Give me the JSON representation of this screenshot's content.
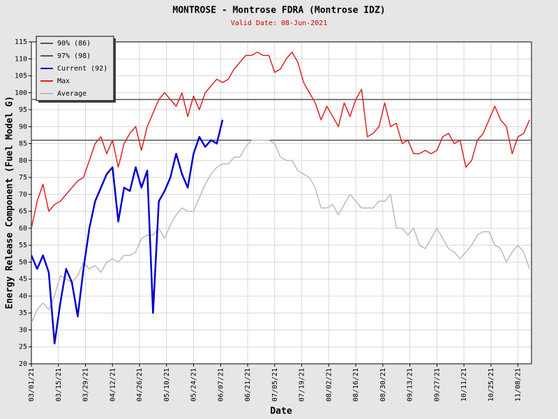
{
  "chart_data": {
    "type": "line",
    "title": "MONTROSE - Montrose FDRA (Montrose IDZ)",
    "subtitle": "Valid Date: 08-Jun-2021",
    "x_label": "Date",
    "y_label": "Energy Release Component (Fuel Model G)",
    "x": [
      "03/01/21",
      "03/04/21",
      "03/07/21",
      "03/10/21",
      "03/13/21",
      "03/16/21",
      "03/19/21",
      "03/22/21",
      "03/25/21",
      "03/28/21",
      "03/31/21",
      "04/03/21",
      "04/06/21",
      "04/09/21",
      "04/12/21",
      "04/15/21",
      "04/18/21",
      "04/21/21",
      "04/24/21",
      "04/27/21",
      "04/30/21",
      "05/03/21",
      "05/06/21",
      "05/09/21",
      "05/12/21",
      "05/15/21",
      "05/18/21",
      "05/21/21",
      "05/24/21",
      "05/27/21",
      "05/30/21",
      "06/02/21",
      "06/05/21",
      "06/08/21",
      "06/11/21",
      "06/14/21",
      "06/17/21",
      "06/20/21",
      "06/23/21",
      "06/26/21",
      "06/29/21",
      "07/02/21",
      "07/05/21",
      "07/08/21",
      "07/11/21",
      "07/14/21",
      "07/17/21",
      "07/20/21",
      "07/23/21",
      "07/26/21",
      "07/29/21",
      "08/01/21",
      "08/04/21",
      "08/07/21",
      "08/10/21",
      "08/13/21",
      "08/16/21",
      "08/19/21",
      "08/22/21",
      "08/25/21",
      "08/28/21",
      "08/31/21",
      "09/03/21",
      "09/06/21",
      "09/09/21",
      "09/12/21",
      "09/15/21",
      "09/18/21",
      "09/21/21",
      "09/24/21",
      "09/27/21",
      "09/30/21",
      "10/03/21",
      "10/06/21",
      "10/09/21",
      "10/12/21",
      "10/15/21",
      "10/18/21",
      "10/21/21",
      "10/24/21",
      "10/27/21",
      "10/30/21",
      "11/02/21",
      "11/05/21",
      "11/08/21",
      "11/11/21",
      "11/14/21"
    ],
    "series": [
      {
        "name": "Average",
        "color": "#bbbbbb",
        "values": [
          32,
          36,
          38,
          36,
          40,
          46,
          45,
          44,
          46,
          50,
          48,
          49,
          47,
          50,
          51,
          50,
          52,
          52,
          53,
          57,
          58,
          58,
          60,
          57,
          61,
          64,
          66,
          65,
          65,
          69,
          73,
          76,
          78,
          79,
          79,
          81,
          81,
          84,
          86,
          86,
          86,
          86,
          85,
          81,
          80,
          80,
          77,
          76,
          75,
          72,
          66,
          66,
          67,
          64,
          67,
          70,
          68,
          66,
          66,
          66,
          68,
          68,
          70,
          60,
          60,
          58,
          60,
          55,
          54,
          57,
          60,
          57,
          54,
          53,
          51,
          53,
          55,
          58,
          59,
          59,
          55,
          54,
          50,
          53,
          55,
          53,
          48
        ]
      },
      {
        "name": "Max",
        "color": "#dd2222",
        "values": [
          60,
          68,
          73,
          65,
          67,
          68,
          70,
          72,
          74,
          75,
          80,
          85,
          87,
          82,
          86,
          78,
          85,
          88,
          90,
          83,
          90,
          94,
          98,
          100,
          98,
          96,
          100,
          93,
          99,
          95,
          100,
          102,
          104,
          103,
          104,
          107,
          109,
          111,
          111,
          112,
          111,
          111,
          106,
          107,
          110,
          112,
          109,
          103,
          100,
          97,
          92,
          96,
          93,
          90,
          97,
          93,
          98,
          101,
          87,
          88,
          90,
          97,
          90,
          91,
          85,
          86,
          82,
          82,
          83,
          82,
          83,
          87,
          88,
          85,
          86,
          78,
          80,
          86,
          88,
          92,
          96,
          92,
          90,
          82,
          87,
          88,
          92
        ]
      },
      {
        "name": "Current (92)",
        "color": "#0000cc",
        "values": [
          52,
          48,
          52,
          47,
          26,
          38,
          48,
          44,
          34,
          48,
          60,
          68,
          72,
          76,
          78,
          62,
          72,
          71,
          78,
          72,
          77,
          35,
          68,
          71,
          75,
          82,
          76,
          72,
          82,
          87,
          84,
          86,
          85,
          92,
          null,
          null,
          null,
          null,
          null,
          null,
          null,
          null,
          null,
          null,
          null,
          null,
          null,
          null,
          null,
          null,
          null,
          null,
          null,
          null,
          null,
          null,
          null,
          null,
          null,
          null,
          null,
          null,
          null,
          null,
          null,
          null,
          null,
          null,
          null,
          null,
          null,
          null,
          null,
          null,
          null,
          null,
          null,
          null,
          null,
          null,
          null,
          null,
          null,
          null,
          null,
          null,
          null
        ]
      }
    ],
    "reference_lines": [
      {
        "name": "90% (86)",
        "value": 86,
        "color": "#555555"
      },
      {
        "name": "97% (98)",
        "value": 98,
        "color": "#555555"
      }
    ],
    "xlim": [
      "03/01/21",
      "11/15/21"
    ],
    "xticks": [
      "03/01/21",
      "03/15/21",
      "03/29/21",
      "04/12/21",
      "04/26/21",
      "05/10/21",
      "05/24/21",
      "06/07/21",
      "06/21/21",
      "07/05/21",
      "07/19/21",
      "08/02/21",
      "08/16/21",
      "08/30/21",
      "09/13/21",
      "09/27/21",
      "10/11/21",
      "10/25/21",
      "11/08/21"
    ],
    "ylim": [
      20,
      115
    ],
    "yticks": [
      20,
      25,
      30,
      35,
      40,
      45,
      50,
      55,
      60,
      65,
      70,
      75,
      80,
      85,
      90,
      95,
      100,
      105,
      110,
      115
    ],
    "grid": true,
    "legend": "upper left"
  }
}
